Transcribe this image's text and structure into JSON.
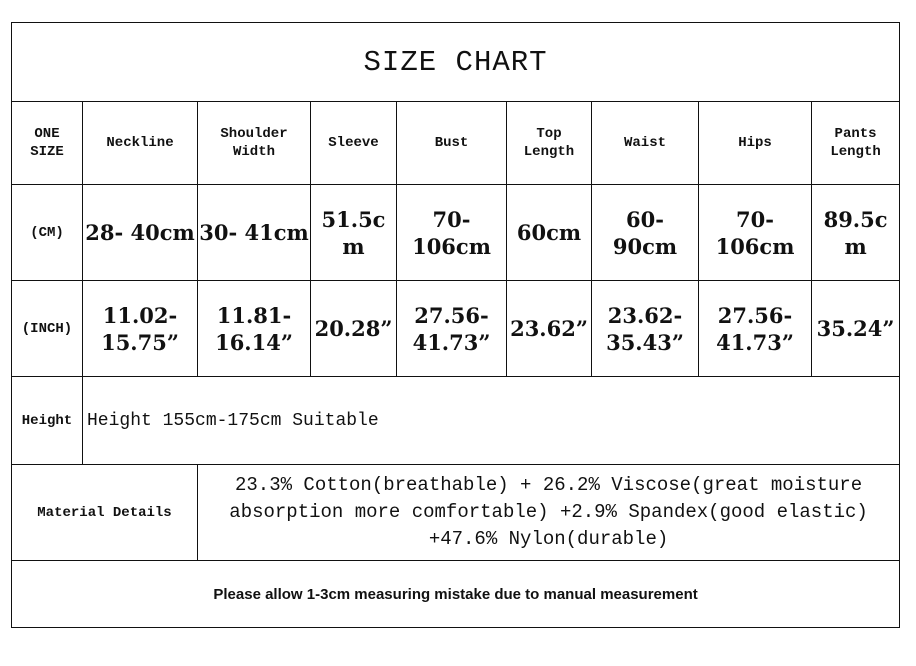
{
  "title": "SIZE CHART",
  "header": [
    "ONE\nSIZE",
    "Neckline",
    "Shoulder\nWidth",
    "Sleeve",
    "Bust",
    "Top\nLength",
    "Waist",
    "Hips",
    "Pants\nLength"
  ],
  "cm_row": {
    "label": "(CM)",
    "values": [
      "28- 40cm",
      "30- 41cm",
      "51.5c\nm",
      "70-\n106cm",
      "60cm",
      "60-\n90cm",
      "70-\n106cm",
      "89.5c\nm"
    ]
  },
  "inch_row": {
    "label": "(INCH)",
    "values": [
      "11.02-\n15.75”",
      "11.81-\n16.14”",
      "20.28”",
      "27.56-\n41.73”",
      "23.62”",
      "23.62-\n35.43”",
      "27.56-\n41.73”",
      "35.24”"
    ]
  },
  "height_row": {
    "label": "Height",
    "text": "Height 155cm-175cm Suitable"
  },
  "material_row": {
    "label": "Material Details",
    "text": "23.3% Cotton(breathable) + 26.2% Viscose(great moisture absorption more comfortable) +2.9% Spandex(good elastic) +47.6% Nylon(durable)"
  },
  "footer": "Please allow 1-3cm measuring mistake due to manual measurement"
}
